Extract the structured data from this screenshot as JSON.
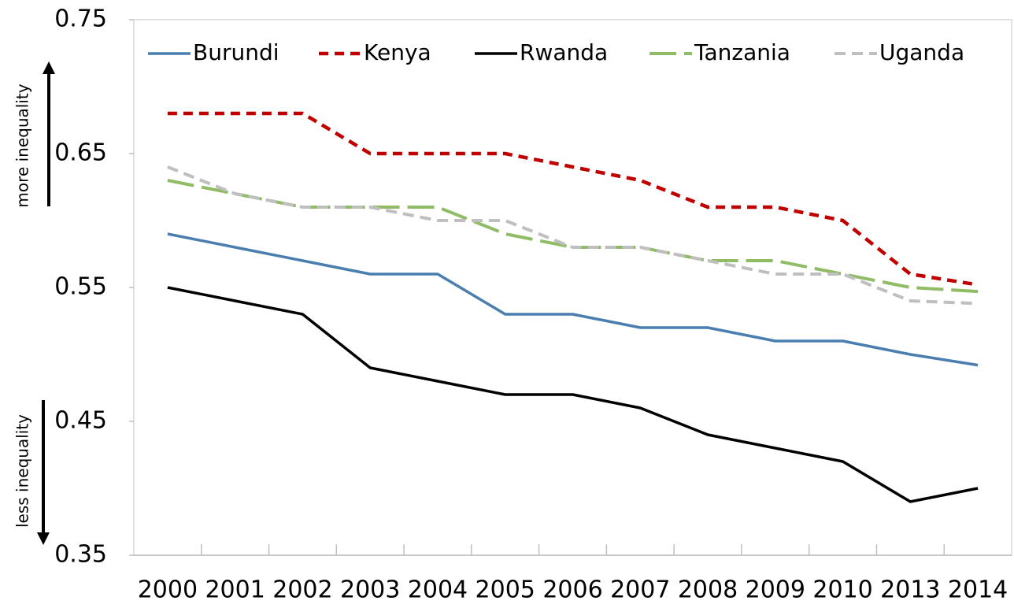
{
  "chart_data": {
    "type": "line",
    "categories": [
      "2000",
      "2001",
      "2002",
      "2003",
      "2004",
      "2005",
      "2006",
      "2007",
      "2008",
      "2009",
      "2010",
      "2013",
      "2014"
    ],
    "series": [
      {
        "name": "Burundi",
        "color": "#4a7eb0",
        "values": [
          0.59,
          0.58,
          0.57,
          0.56,
          0.56,
          0.53,
          0.53,
          0.52,
          0.52,
          0.51,
          0.51,
          0.5,
          0.492
        ]
      },
      {
        "name": "Kenya",
        "color": "#c00000",
        "values": [
          0.68,
          0.68,
          0.68,
          0.65,
          0.65,
          0.65,
          0.64,
          0.63,
          0.61,
          0.61,
          0.6,
          0.56,
          0.552
        ]
      },
      {
        "name": "Rwanda",
        "color": "#000000",
        "values": [
          0.55,
          0.54,
          0.53,
          0.49,
          0.48,
          0.47,
          0.47,
          0.46,
          0.44,
          0.43,
          0.42,
          0.39,
          0.4
        ]
      },
      {
        "name": "Tanzania",
        "color": "#8fbc64",
        "values": [
          0.63,
          0.62,
          0.61,
          0.61,
          0.61,
          0.59,
          0.58,
          0.58,
          0.57,
          0.57,
          0.56,
          0.55,
          0.547
        ]
      },
      {
        "name": "Uganda",
        "color": "#bfbfbf",
        "values": [
          0.64,
          0.62,
          0.61,
          0.61,
          0.6,
          0.6,
          0.58,
          0.58,
          0.57,
          0.56,
          0.56,
          0.54,
          0.538
        ]
      }
    ],
    "ylim": [
      0.35,
      0.75
    ],
    "yticks": [
      0.35,
      0.45,
      0.55,
      0.65,
      0.75
    ],
    "annotations": [
      "more inequality",
      "less inequality"
    ],
    "legend": "top"
  }
}
